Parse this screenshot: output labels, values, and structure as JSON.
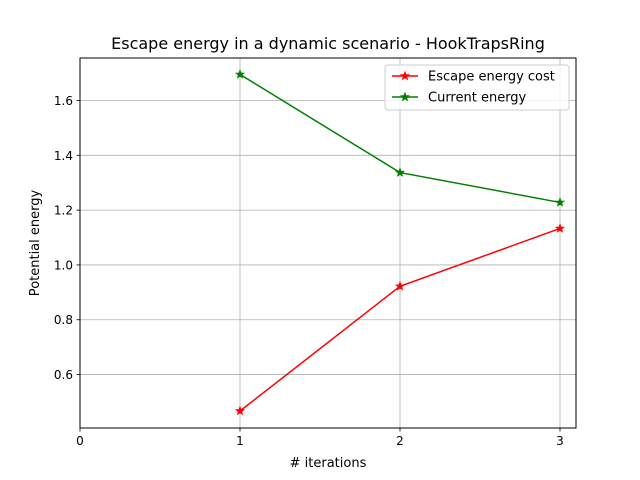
{
  "chart_data": {
    "type": "line",
    "title": "Escape energy in a dynamic scenario - HookTrapsRing",
    "xlabel": "# iterations",
    "ylabel": "Potential energy",
    "xlim": [
      0,
      3.1
    ],
    "ylim": [
      0.405,
      1.755
    ],
    "x_ticks": [
      "0",
      "1",
      "2",
      "3"
    ],
    "y_ticks": [
      "0.6",
      "0.8",
      "1.0",
      "1.2",
      "1.4",
      "1.6"
    ],
    "grid": true,
    "legend_position": "top-right",
    "series": [
      {
        "name": "Escape energy cost",
        "color": "#ff0000",
        "marker": "star",
        "x": [
          1,
          2,
          3
        ],
        "y": [
          0.467,
          0.922,
          1.133
        ]
      },
      {
        "name": "Current energy",
        "color": "#008000",
        "marker": "star",
        "x": [
          1,
          2,
          3
        ],
        "y": [
          1.695,
          1.337,
          1.228
        ]
      }
    ]
  }
}
